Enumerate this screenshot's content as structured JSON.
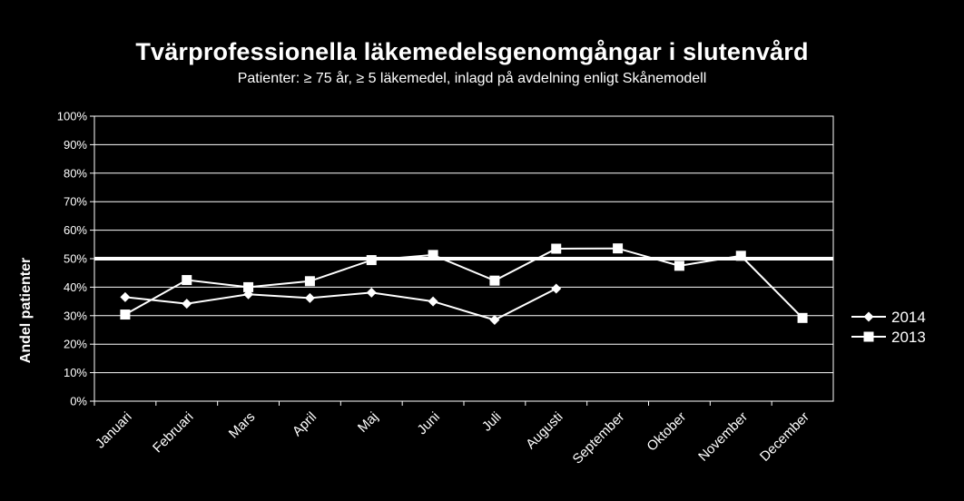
{
  "chart_data": {
    "type": "line",
    "title": "Tvärprofessionella läkemedelsgenomgångar i slutenvård",
    "subtitle": "Patienter: ≥ 75 år, ≥ 5 läkemedel, inlagd på avdelning enligt Skånemodell",
    "ylabel": "Andel patienter",
    "categories": [
      "Januari",
      "Februari",
      "Mars",
      "April",
      "Maj",
      "Juni",
      "Juli",
      "Augusti",
      "September",
      "Oktober",
      "November",
      "December"
    ],
    "yticks": [
      "0%",
      "10%",
      "20%",
      "30%",
      "40%",
      "50%",
      "60%",
      "70%",
      "80%",
      "90%",
      "100%"
    ],
    "ylim": [
      0,
      100
    ],
    "grid": true,
    "legend": "right",
    "target": 50,
    "series": [
      {
        "name": "2014",
        "marker": "diamond",
        "values": [
          36.5,
          34.2,
          37.5,
          36.2,
          38.1,
          35.0,
          28.5,
          39.5,
          null,
          null,
          null,
          null
        ]
      },
      {
        "name": "2013",
        "marker": "square",
        "values": [
          30.4,
          42.5,
          40.0,
          42.1,
          49.5,
          51.3,
          42.3,
          53.5,
          53.6,
          47.5,
          51.0,
          29.2
        ]
      }
    ],
    "colors": {
      "background": "#000000",
      "line": "#ffffff",
      "grid": "#ffffff"
    }
  }
}
